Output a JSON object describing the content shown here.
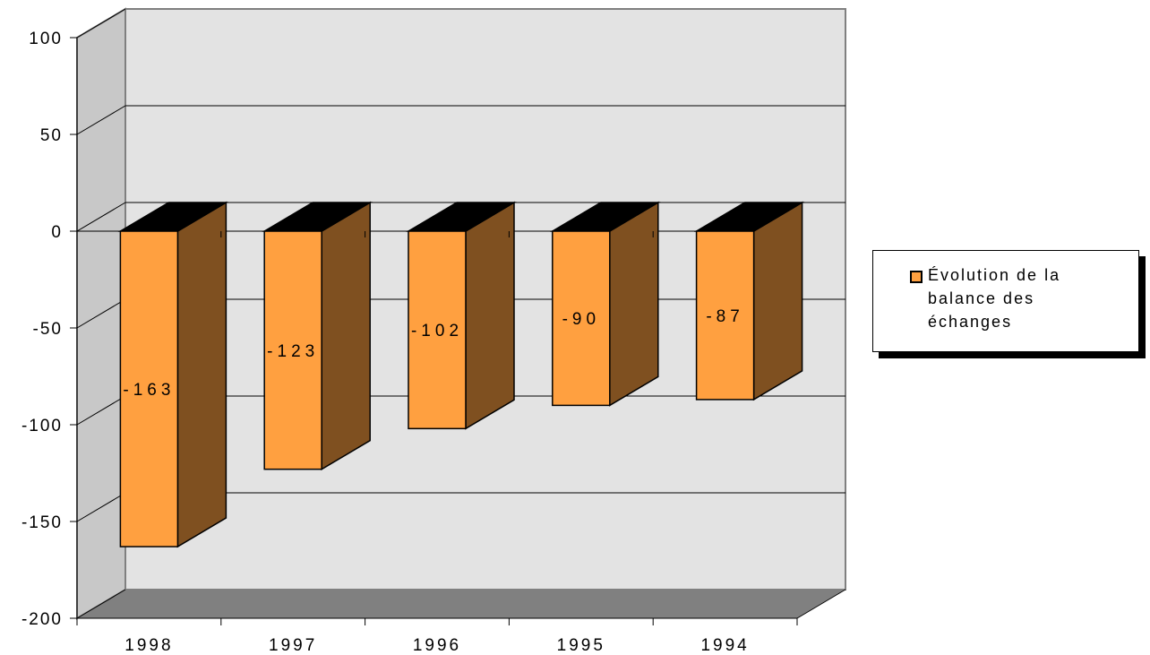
{
  "chart_data": {
    "type": "bar",
    "style": "3d-column",
    "categories": [
      "1998",
      "1997",
      "1996",
      "1995",
      "1994"
    ],
    "series": [
      {
        "name": "Évolution de la balance des échanges",
        "values": [
          -163,
          -123,
          -102,
          -90,
          -87
        ],
        "data_labels": [
          "-163",
          "-123",
          "-102",
          "-90",
          "-87"
        ],
        "color": "#FFA040",
        "side_color": "#7F5020",
        "top_color": "#000000"
      }
    ],
    "ylim": [
      -200,
      100
    ],
    "yticks": [
      100,
      50,
      0,
      -50,
      -100,
      -150,
      -200
    ],
    "ytick_labels": [
      "100",
      "50",
      "0",
      "-50",
      "-100",
      "-150",
      "-200"
    ],
    "title": "",
    "xlabel": "",
    "ylabel": "",
    "grid": true,
    "legend": {
      "position": "right",
      "lines": [
        "Évolution de la",
        "balance des",
        "échanges"
      ]
    },
    "colors": {
      "wall": "#E3E3E3",
      "floor": "#808080",
      "grid": "#000000"
    }
  }
}
